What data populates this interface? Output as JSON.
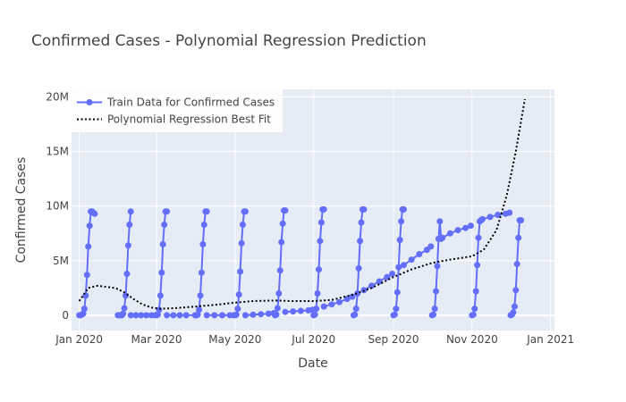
{
  "chart_data": {
    "type": "line",
    "title": "Confirmed Cases - Polynomial Regression Prediction",
    "xlabel": "Date",
    "ylabel": "Confirmed Cases",
    "xlim": [
      "2019-12-26",
      "2021-01-04"
    ],
    "ylim": [
      -1400000,
      20700000
    ],
    "x_ticks": [
      {
        "date": "2020-01-01",
        "label": "Jan 2020"
      },
      {
        "date": "2020-03-01",
        "label": "Mar 2020"
      },
      {
        "date": "2020-05-01",
        "label": "May 2020"
      },
      {
        "date": "2020-07-01",
        "label": "Jul 2020"
      },
      {
        "date": "2020-09-01",
        "label": "Sep 2020"
      },
      {
        "date": "2020-11-01",
        "label": "Nov 2020"
      },
      {
        "date": "2021-01-01",
        "label": "Jan 2021"
      }
    ],
    "y_ticks": [
      {
        "value": 0,
        "label": "0"
      },
      {
        "value": 5000000,
        "label": "5M"
      },
      {
        "value": 10000000,
        "label": "10M"
      },
      {
        "value": 15000000,
        "label": "15M"
      },
      {
        "value": 20000000,
        "label": "20M"
      }
    ],
    "grid": true,
    "legend_position": "top-left",
    "colors": {
      "train": "#636efa",
      "fit": "#000000",
      "plot_bg": "#e5ecf6",
      "grid": "#ffffff",
      "text": "#444444"
    },
    "series": [
      {
        "name": "Train Data for Confirmed Cases",
        "mode": "lines+markers",
        "segments": [
          {
            "x": [
              "2020-01-01",
              "2020-01-02",
              "2020-01-03",
              "2020-01-04",
              "2020-01-05",
              "2020-01-06",
              "2020-01-07",
              "2020-01-08",
              "2020-01-09",
              "2020-01-10",
              "2020-01-11",
              "2020-01-12",
              "2020-01-13"
            ],
            "y": [
              0,
              0,
              60000,
              150000,
              600000,
              1800000,
              3700000,
              6300000,
              8200000,
              9500000,
              9500000,
              9400000,
              9300000
            ]
          },
          {
            "x": [
              "2020-01-31",
              "2020-02-01",
              "2020-02-02",
              "2020-02-03",
              "2020-02-04",
              "2020-02-05",
              "2020-02-06",
              "2020-02-07",
              "2020-02-08",
              "2020-02-09",
              "2020-02-10"
            ],
            "y": [
              0,
              0,
              0,
              0,
              150000,
              650000,
              1800000,
              3800000,
              6400000,
              8300000,
              9500000
            ]
          },
          {
            "x": [
              "2020-02-10",
              "2020-02-14",
              "2020-02-18",
              "2020-02-22",
              "2020-02-26",
              "2020-02-29"
            ],
            "y": [
              0,
              0,
              0,
              0,
              0,
              0
            ]
          },
          {
            "x": [
              "2020-03-01",
              "2020-03-02",
              "2020-03-03",
              "2020-03-04",
              "2020-03-05",
              "2020-03-06",
              "2020-03-07",
              "2020-03-08",
              "2020-03-09"
            ],
            "y": [
              0,
              60000,
              500000,
              1800000,
              3900000,
              6500000,
              8300000,
              9500000,
              9500000
            ]
          },
          {
            "x": [
              "2020-03-09",
              "2020-03-14",
              "2020-03-19",
              "2020-03-24",
              "2020-03-31"
            ],
            "y": [
              0,
              0,
              0,
              0,
              0
            ]
          },
          {
            "x": [
              "2020-04-01",
              "2020-04-02",
              "2020-04-03",
              "2020-04-04",
              "2020-04-05",
              "2020-04-06",
              "2020-04-07",
              "2020-04-08",
              "2020-04-09"
            ],
            "y": [
              0,
              60000,
              500000,
              1800000,
              3900000,
              6500000,
              8300000,
              9500000,
              9500000
            ]
          },
          {
            "x": [
              "2020-04-09",
              "2020-04-15",
              "2020-04-21",
              "2020-04-27",
              "2020-04-30"
            ],
            "y": [
              0,
              0,
              0,
              0,
              0
            ]
          },
          {
            "x": [
              "2020-05-01",
              "2020-05-02",
              "2020-05-03",
              "2020-05-04",
              "2020-05-05",
              "2020-05-06",
              "2020-05-07",
              "2020-05-08",
              "2020-05-09"
            ],
            "y": [
              0,
              60000,
              600000,
              1900000,
              4000000,
              6600000,
              8300000,
              9500000,
              9500000
            ]
          },
          {
            "x": [
              "2020-05-09",
              "2020-05-15",
              "2020-05-21",
              "2020-05-27",
              "2020-05-31"
            ],
            "y": [
              0,
              50000,
              100000,
              150000,
              200000
            ]
          },
          {
            "x": [
              "2020-06-01",
              "2020-06-02",
              "2020-06-03",
              "2020-06-04",
              "2020-06-05",
              "2020-06-06",
              "2020-06-07",
              "2020-06-08",
              "2020-06-09"
            ],
            "y": [
              0,
              60000,
              650000,
              2000000,
              4100000,
              6700000,
              8400000,
              9600000,
              9600000
            ]
          },
          {
            "x": [
              "2020-06-09",
              "2020-06-15",
              "2020-06-21",
              "2020-06-27",
              "2020-06-30"
            ],
            "y": [
              300000,
              350000,
              400000,
              450000,
              500000
            ]
          },
          {
            "x": [
              "2020-07-01",
              "2020-07-02",
              "2020-07-03",
              "2020-07-04",
              "2020-07-05",
              "2020-07-06",
              "2020-07-07",
              "2020-07-08",
              "2020-07-09"
            ],
            "y": [
              0,
              60000,
              600000,
              2000000,
              4200000,
              6800000,
              8500000,
              9700000,
              9700000
            ]
          },
          {
            "x": [
              "2020-07-09",
              "2020-07-15",
              "2020-07-21",
              "2020-07-27",
              "2020-07-31"
            ],
            "y": [
              800000,
              1000000,
              1200000,
              1500000,
              1700000
            ]
          },
          {
            "x": [
              "2020-08-01",
              "2020-08-02",
              "2020-08-03",
              "2020-08-04",
              "2020-08-05",
              "2020-08-06",
              "2020-08-07",
              "2020-08-08",
              "2020-08-09"
            ],
            "y": [
              0,
              60000,
              600000,
              2000000,
              4300000,
              6800000,
              8500000,
              9700000,
              9700000
            ]
          },
          {
            "x": [
              "2020-08-09",
              "2020-08-15",
              "2020-08-21",
              "2020-08-27",
              "2020-08-31"
            ],
            "y": [
              2300000,
              2700000,
              3100000,
              3500000,
              3800000
            ]
          },
          {
            "x": [
              "2020-09-01",
              "2020-09-02",
              "2020-09-03",
              "2020-09-04",
              "2020-09-05",
              "2020-09-06",
              "2020-09-07",
              "2020-09-08",
              "2020-09-09"
            ],
            "y": [
              0,
              60000,
              600000,
              2100000,
              4400000,
              6900000,
              8600000,
              9700000,
              9700000
            ]
          },
          {
            "x": [
              "2020-09-09",
              "2020-09-15",
              "2020-09-21",
              "2020-09-27",
              "2020-09-30"
            ],
            "y": [
              4600000,
              5100000,
              5600000,
              6000000,
              6300000
            ]
          },
          {
            "x": [
              "2020-10-01",
              "2020-10-02",
              "2020-10-03",
              "2020-10-04",
              "2020-10-05",
              "2020-10-06",
              "2020-10-07",
              "2020-10-08",
              "2020-10-09"
            ],
            "y": [
              0,
              60000,
              600000,
              2200000,
              4500000,
              7000000,
              8600000,
              7000000,
              7100000
            ]
          },
          {
            "x": [
              "2020-10-09",
              "2020-10-15",
              "2020-10-21",
              "2020-10-27",
              "2020-10-31"
            ],
            "y": [
              7100000,
              7500000,
              7800000,
              8000000,
              8200000
            ]
          },
          {
            "x": [
              "2020-11-01",
              "2020-11-02",
              "2020-11-03",
              "2020-11-04",
              "2020-11-05",
              "2020-11-06",
              "2020-11-07",
              "2020-11-08",
              "2020-11-09"
            ],
            "y": [
              0,
              60000,
              600000,
              2200000,
              4600000,
              7100000,
              8600000,
              8700000,
              8800000
            ]
          },
          {
            "x": [
              "2020-11-09",
              "2020-11-15",
              "2020-11-21",
              "2020-11-27",
              "2020-11-30"
            ],
            "y": [
              8800000,
              9000000,
              9200000,
              9300000,
              9400000
            ]
          },
          {
            "x": [
              "2020-12-01",
              "2020-12-02",
              "2020-12-03",
              "2020-12-04",
              "2020-12-05",
              "2020-12-06",
              "2020-12-07",
              "2020-12-08",
              "2020-12-09"
            ],
            "y": [
              0,
              60000,
              250000,
              800000,
              2300000,
              4700000,
              7100000,
              8700000,
              8700000
            ]
          }
        ]
      },
      {
        "name": "Polynomial Regression Best Fit",
        "mode": "lines",
        "dash": "dot",
        "x": [
          "2020-01-01",
          "2020-01-08",
          "2020-01-15",
          "2020-01-22",
          "2020-01-29",
          "2020-02-05",
          "2020-02-12",
          "2020-02-19",
          "2020-02-26",
          "2020-03-04",
          "2020-03-15",
          "2020-04-01",
          "2020-04-15",
          "2020-05-01",
          "2020-05-15",
          "2020-06-01",
          "2020-06-15",
          "2020-07-01",
          "2020-07-15",
          "2020-08-01",
          "2020-08-15",
          "2020-09-01",
          "2020-09-15",
          "2020-10-01",
          "2020-10-15",
          "2020-11-01",
          "2020-11-10",
          "2020-11-20",
          "2020-11-28",
          "2020-12-05",
          "2020-12-12"
        ],
        "y": [
          1300000,
          2500000,
          2700000,
          2600000,
          2500000,
          2100000,
          1500000,
          1000000,
          700000,
          600000,
          650000,
          800000,
          950000,
          1150000,
          1300000,
          1350000,
          1300000,
          1300000,
          1400000,
          1900000,
          2500000,
          3500000,
          4200000,
          4800000,
          5100000,
          5400000,
          6000000,
          7800000,
          11000000,
          15000000,
          19800000
        ]
      }
    ]
  }
}
